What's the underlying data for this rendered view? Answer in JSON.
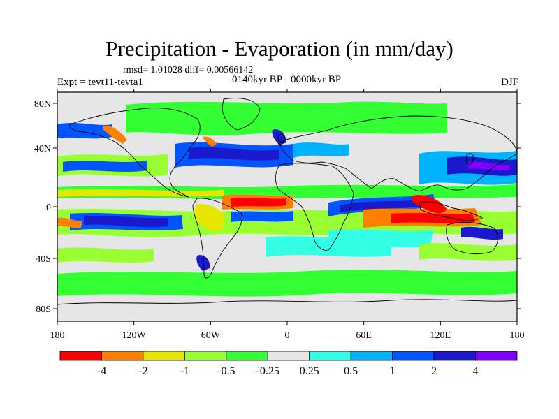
{
  "title": "Precipitation - Evaporation (in mm/day)",
  "stats": "rmsd= 1.01028 diff= 0.00566142",
  "subtitle": "0140kyr BP - 0000kyr BP",
  "experiment": "Expt = tevt11-tevta1",
  "season": "DJF",
  "map_background": "#e6e6e6",
  "lat_labels": [
    "80N",
    "40N",
    "0",
    "40S",
    "80S"
  ],
  "lon_labels": [
    "180",
    "120W",
    "60W",
    "0",
    "60E",
    "120E",
    "180"
  ],
  "colorbar": {
    "colors": [
      "#ff0000",
      "#ff8000",
      "#e6e600",
      "#99ff33",
      "#33ff33",
      "#e6e6e6",
      "#33ffe6",
      "#00b3ff",
      "#0055ff",
      "#1a1acc",
      "#8000ff"
    ],
    "labels": [
      "-4",
      "-2",
      "-1",
      "-0.5",
      "-0.25",
      "0.25",
      "0.5",
      "1",
      "2",
      "4"
    ]
  }
}
